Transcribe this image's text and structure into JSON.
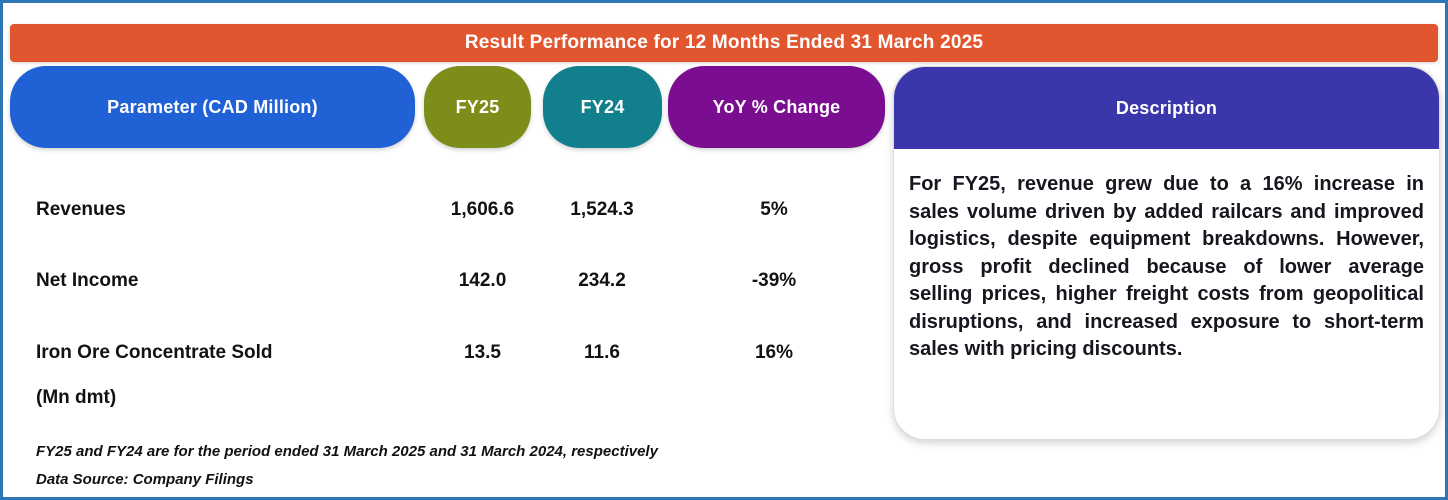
{
  "title_bar": {
    "text": "Result Performance for 12 Months Ended 31 March 2025"
  },
  "columns": {
    "parameter": "Parameter (CAD Million)",
    "fy25": "FY25",
    "fy24": "FY24",
    "yoy": "YoY % Change",
    "description": "Description"
  },
  "rows": [
    {
      "parameter": "Revenues",
      "fy25": "1,606.6",
      "fy24": "1,524.3",
      "yoy": "5%"
    },
    {
      "parameter": "Net Income",
      "fy25": "142.0",
      "fy24": "234.2",
      "yoy": "-39%"
    },
    {
      "parameter": "Iron Ore Concentrate Sold",
      "parameter_2": "(Mn dmt)",
      "fy25": "13.5",
      "fy24": "11.6",
      "yoy": "16%"
    }
  ],
  "footnotes": [
    "FY25 and FY24 are for the period ended 31 March 2025 and  31 March 2024, respectively",
    "Data Source: Company Filings"
  ],
  "description": {
    "body": "For FY25, revenue grew due to a 16% increase in sales volume driven by added railcars and improved logistics, despite equipment breakdowns. However, gross profit declined because of lower average selling prices, higher freight costs from geopolitical disruptions, and increased exposure to short-term sales with pricing discounts."
  },
  "colors": {
    "frame_border": "#2E75B6",
    "title_bar_bg": "#E1562E",
    "parameter_header_bg": "#2061D5",
    "fy25_header_bg": "#7E8C1A",
    "fy24_header_bg": "#117F8C",
    "yoy_header_bg": "#7B0D90",
    "description_header_bg": "#3A37AB",
    "header_text": "#FFFFFF",
    "body_text": "#121212"
  }
}
